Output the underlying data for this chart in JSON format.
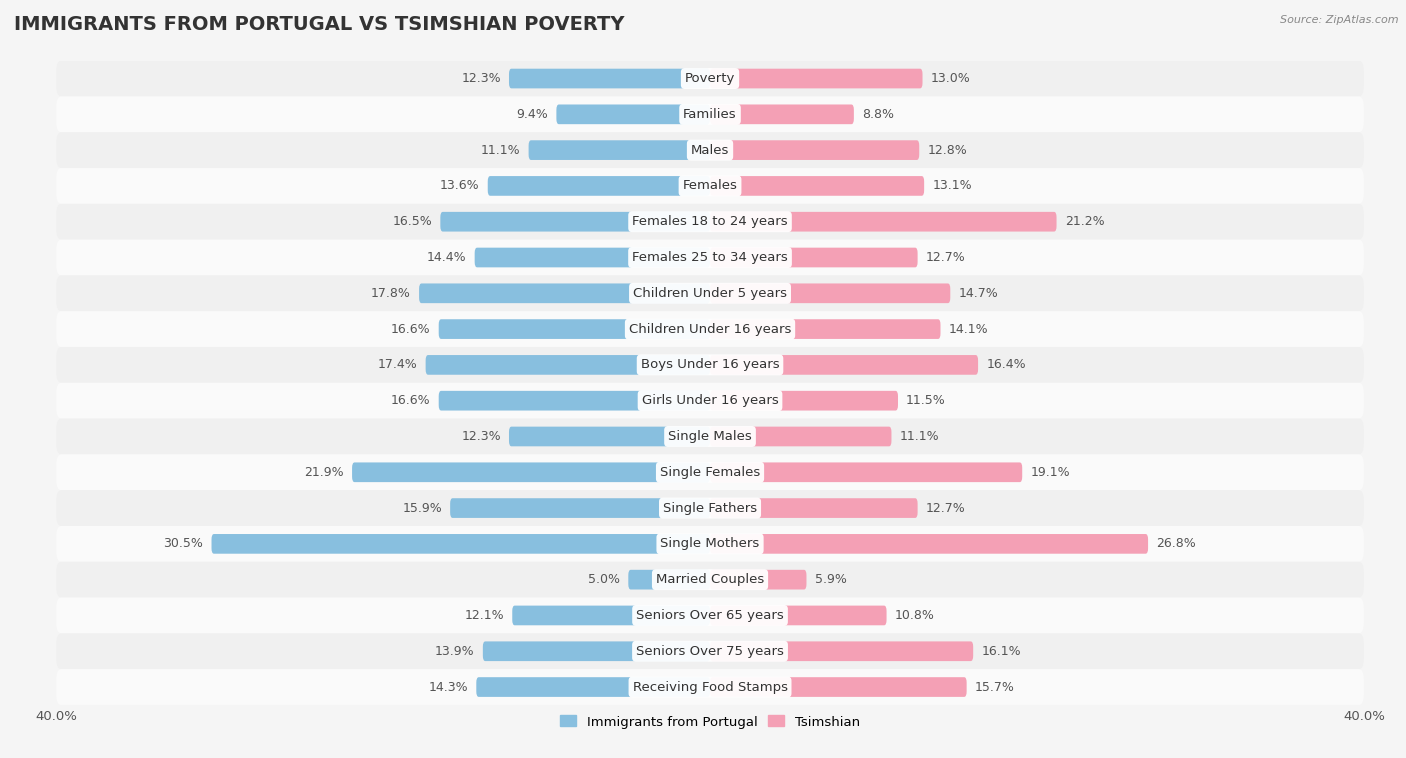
{
  "title": "IMMIGRANTS FROM PORTUGAL VS TSIMSHIAN POVERTY",
  "source": "Source: ZipAtlas.com",
  "categories": [
    "Poverty",
    "Families",
    "Males",
    "Females",
    "Females 18 to 24 years",
    "Females 25 to 34 years",
    "Children Under 5 years",
    "Children Under 16 years",
    "Boys Under 16 years",
    "Girls Under 16 years",
    "Single Males",
    "Single Females",
    "Single Fathers",
    "Single Mothers",
    "Married Couples",
    "Seniors Over 65 years",
    "Seniors Over 75 years",
    "Receiving Food Stamps"
  ],
  "portugal_values": [
    12.3,
    9.4,
    11.1,
    13.6,
    16.5,
    14.4,
    17.8,
    16.6,
    17.4,
    16.6,
    12.3,
    21.9,
    15.9,
    30.5,
    5.0,
    12.1,
    13.9,
    14.3
  ],
  "tsimshian_values": [
    13.0,
    8.8,
    12.8,
    13.1,
    21.2,
    12.7,
    14.7,
    14.1,
    16.4,
    11.5,
    11.1,
    19.1,
    12.7,
    26.8,
    5.9,
    10.8,
    16.1,
    15.7
  ],
  "portugal_color": "#88bfdf",
  "tsimshian_color": "#f4a0b5",
  "row_colors": [
    "#f0f0f0",
    "#fafafa"
  ],
  "label_color": "#555555",
  "xlim": 40.0,
  "bar_height": 0.55,
  "legend_labels": [
    "Immigrants from Portugal",
    "Tsimshian"
  ],
  "title_fontsize": 14,
  "label_fontsize": 9.5,
  "value_fontsize": 9,
  "tick_fontsize": 9.5
}
